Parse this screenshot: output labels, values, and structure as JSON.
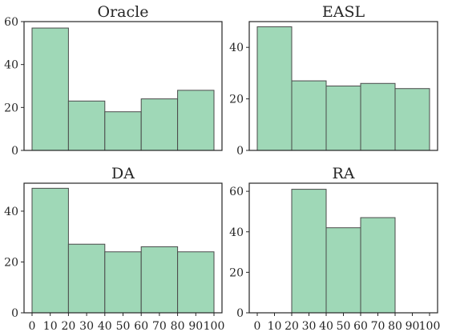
{
  "colors": {
    "bar_fill": "#9fd8b7",
    "bar_edge": "#4a4a4a",
    "axes": "#262626"
  },
  "chart_data": [
    {
      "type": "bar",
      "title": "Oracle",
      "bin_edges": [
        0,
        20,
        40,
        60,
        80,
        100
      ],
      "values": [
        57,
        23,
        18,
        24,
        28
      ],
      "ylim": [
        0,
        60
      ],
      "yticks": [
        0,
        20,
        40,
        60
      ],
      "xticks": [],
      "xlabel": "",
      "ylabel": "",
      "grid": false
    },
    {
      "type": "bar",
      "title": "EASL",
      "bin_edges": [
        0,
        20,
        40,
        60,
        80,
        100
      ],
      "values": [
        48,
        27,
        25,
        26,
        24
      ],
      "ylim": [
        0,
        50
      ],
      "yticks": [
        0,
        20,
        40
      ],
      "xticks": [],
      "xlabel": "",
      "ylabel": "",
      "grid": false
    },
    {
      "type": "bar",
      "title": "DA",
      "bin_edges": [
        0,
        20,
        40,
        60,
        80,
        100
      ],
      "values": [
        49,
        27,
        24,
        26,
        24
      ],
      "ylim": [
        0,
        51
      ],
      "yticks": [
        0,
        20,
        40
      ],
      "xticks": [
        0,
        10,
        20,
        30,
        40,
        50,
        60,
        70,
        80,
        90,
        100
      ],
      "xlabel": "",
      "ylabel": "",
      "grid": false
    },
    {
      "type": "bar",
      "title": "RA",
      "bin_edges": [
        0,
        20,
        40,
        60,
        80,
        100
      ],
      "values": [
        0,
        61,
        42,
        47,
        0
      ],
      "ylim": [
        0,
        64
      ],
      "yticks": [
        0,
        20,
        40,
        60
      ],
      "xticks": [
        0,
        10,
        20,
        30,
        40,
        50,
        60,
        70,
        80,
        90,
        100
      ],
      "xlabel": "",
      "ylabel": "",
      "grid": false
    }
  ]
}
